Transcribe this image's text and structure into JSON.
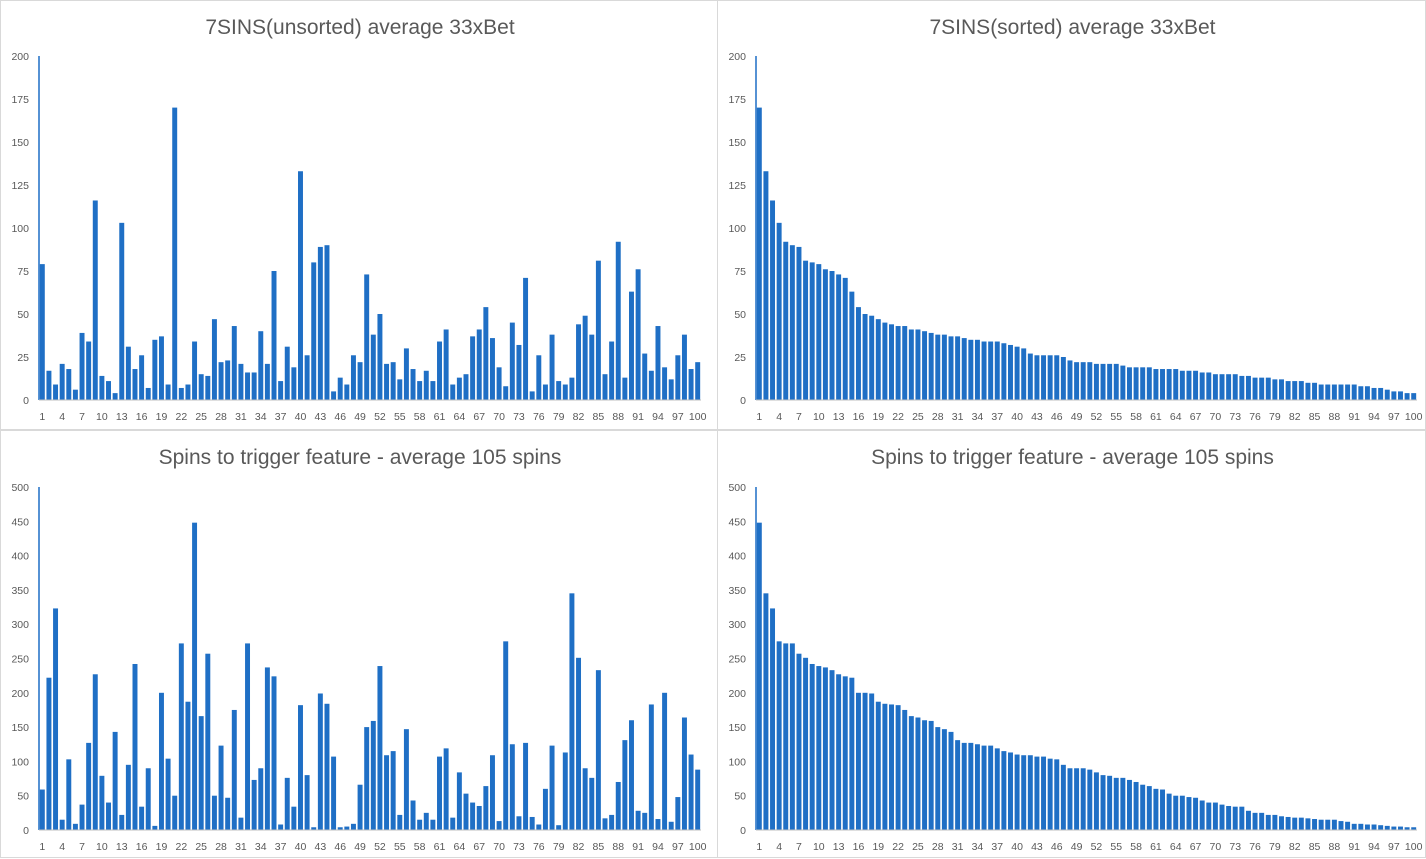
{
  "chart_data": [
    {
      "type": "bar",
      "title": "7SINS(unsorted) average 33xBet",
      "ylim": [
        0,
        200
      ],
      "y_ticks": [
        "0",
        "25",
        "50",
        "75",
        "100",
        "125",
        "150",
        "175",
        "200"
      ],
      "x_tick_labels": [
        "1",
        "4",
        "7",
        "10",
        "13",
        "16",
        "19",
        "22",
        "25",
        "28",
        "31",
        "34",
        "37",
        "40",
        "43",
        "46",
        "49",
        "52",
        "55",
        "58",
        "61",
        "64",
        "67",
        "70",
        "73",
        "76",
        "79",
        "82",
        "85",
        "88",
        "91",
        "94",
        "97",
        "100"
      ],
      "categories": [
        1,
        2,
        3,
        4,
        5,
        6,
        7,
        8,
        9,
        10,
        11,
        12,
        13,
        14,
        15,
        16,
        17,
        18,
        19,
        20,
        21,
        22,
        23,
        24,
        25,
        26,
        27,
        28,
        29,
        30,
        31,
        32,
        33,
        34,
        35,
        36,
        37,
        38,
        39,
        40,
        41,
        42,
        43,
        44,
        45,
        46,
        47,
        48,
        49,
        50,
        51,
        52,
        53,
        54,
        55,
        56,
        57,
        58,
        59,
        60,
        61,
        62,
        63,
        64,
        65,
        66,
        67,
        68,
        69,
        70,
        71,
        72,
        73,
        74,
        75,
        76,
        77,
        78,
        79,
        80,
        81,
        82,
        83,
        84,
        85,
        86,
        87,
        88,
        89,
        90,
        91,
        92,
        93,
        94,
        95,
        96,
        97,
        98,
        99,
        100
      ],
      "values": [
        79,
        17,
        9,
        21,
        18,
        6,
        39,
        34,
        116,
        14,
        11,
        4,
        103,
        31,
        18,
        26,
        7,
        35,
        37,
        9,
        170,
        7,
        9,
        34,
        15,
        14,
        47,
        22,
        23,
        43,
        21,
        16,
        16,
        40,
        21,
        75,
        11,
        31,
        19,
        133,
        26,
        80,
        89,
        90,
        5,
        13,
        9,
        26,
        22,
        73,
        38,
        50,
        21,
        22,
        12,
        30,
        18,
        11,
        17,
        11,
        34,
        41,
        9,
        13,
        15,
        37,
        41,
        54,
        36,
        19,
        8,
        45,
        32,
        71,
        5,
        26,
        9,
        38,
        11,
        9,
        13,
        44,
        49,
        38,
        81,
        15,
        34,
        92,
        13,
        63,
        76,
        27,
        17,
        43,
        19,
        12,
        26,
        38,
        18,
        22
      ],
      "grid": false,
      "legend": "none",
      "color": "#1f6fc5"
    },
    {
      "type": "bar",
      "title": "7SINS(sorted) average 33xBet",
      "ylim": [
        0,
        200
      ],
      "y_ticks": [
        "0",
        "25",
        "50",
        "75",
        "100",
        "125",
        "150",
        "175",
        "200"
      ],
      "x_tick_labels": [
        "1",
        "4",
        "7",
        "10",
        "13",
        "16",
        "19",
        "22",
        "25",
        "28",
        "31",
        "34",
        "37",
        "40",
        "43",
        "46",
        "49",
        "52",
        "55",
        "58",
        "61",
        "64",
        "67",
        "70",
        "73",
        "76",
        "79",
        "82",
        "85",
        "88",
        "91",
        "94",
        "97",
        "100"
      ],
      "categories": [
        1,
        2,
        3,
        4,
        5,
        6,
        7,
        8,
        9,
        10,
        11,
        12,
        13,
        14,
        15,
        16,
        17,
        18,
        19,
        20,
        21,
        22,
        23,
        24,
        25,
        26,
        27,
        28,
        29,
        30,
        31,
        32,
        33,
        34,
        35,
        36,
        37,
        38,
        39,
        40,
        41,
        42,
        43,
        44,
        45,
        46,
        47,
        48,
        49,
        50,
        51,
        52,
        53,
        54,
        55,
        56,
        57,
        58,
        59,
        60,
        61,
        62,
        63,
        64,
        65,
        66,
        67,
        68,
        69,
        70,
        71,
        72,
        73,
        74,
        75,
        76,
        77,
        78,
        79,
        80,
        81,
        82,
        83,
        84,
        85,
        86,
        87,
        88,
        89,
        90,
        91,
        92,
        93,
        94,
        95,
        96,
        97,
        98,
        99,
        100
      ],
      "values": [
        170,
        133,
        116,
        103,
        92,
        90,
        89,
        81,
        80,
        79,
        76,
        75,
        73,
        71,
        63,
        54,
        50,
        49,
        47,
        45,
        44,
        43,
        43,
        41,
        41,
        40,
        39,
        38,
        38,
        37,
        37,
        36,
        35,
        35,
        34,
        34,
        34,
        33,
        32,
        31,
        30,
        27,
        26,
        26,
        26,
        26,
        25,
        23,
        22,
        22,
        22,
        21,
        21,
        21,
        21,
        20,
        19,
        19,
        19,
        19,
        18,
        18,
        18,
        18,
        17,
        17,
        17,
        16,
        16,
        15,
        15,
        15,
        15,
        14,
        14,
        13,
        13,
        13,
        12,
        12,
        11,
        11,
        11,
        10,
        10,
        9,
        9,
        9,
        9,
        9,
        9,
        8,
        8,
        7,
        7,
        6,
        5,
        5,
        4,
        4
      ],
      "grid": false,
      "legend": "none",
      "color": "#1f6fc5"
    },
    {
      "type": "bar",
      "title": "Spins to trigger feature - average 105 spins",
      "ylim": [
        0,
        500
      ],
      "y_ticks": [
        "0",
        "50",
        "100",
        "150",
        "200",
        "250",
        "300",
        "350",
        "400",
        "450",
        "500"
      ],
      "x_tick_labels": [
        "1",
        "4",
        "7",
        "10",
        "13",
        "16",
        "19",
        "22",
        "25",
        "28",
        "31",
        "34",
        "37",
        "40",
        "43",
        "46",
        "49",
        "52",
        "55",
        "58",
        "61",
        "64",
        "67",
        "70",
        "73",
        "76",
        "79",
        "82",
        "85",
        "88",
        "91",
        "94",
        "97",
        "100"
      ],
      "categories": [
        1,
        2,
        3,
        4,
        5,
        6,
        7,
        8,
        9,
        10,
        11,
        12,
        13,
        14,
        15,
        16,
        17,
        18,
        19,
        20,
        21,
        22,
        23,
        24,
        25,
        26,
        27,
        28,
        29,
        30,
        31,
        32,
        33,
        34,
        35,
        36,
        37,
        38,
        39,
        40,
        41,
        42,
        43,
        44,
        45,
        46,
        47,
        48,
        49,
        50,
        51,
        52,
        53,
        54,
        55,
        56,
        57,
        58,
        59,
        60,
        61,
        62,
        63,
        64,
        65,
        66,
        67,
        68,
        69,
        70,
        71,
        72,
        73,
        74,
        75,
        76,
        77,
        78,
        79,
        80,
        81,
        82,
        83,
        84,
        85,
        86,
        87,
        88,
        89,
        90,
        91,
        92,
        93,
        94,
        95,
        96,
        97,
        98,
        99,
        100
      ],
      "values": [
        59,
        222,
        323,
        15,
        103,
        9,
        37,
        127,
        227,
        79,
        40,
        143,
        22,
        95,
        242,
        34,
        90,
        6,
        200,
        104,
        50,
        272,
        187,
        448,
        166,
        257,
        50,
        123,
        47,
        175,
        18,
        272,
        73,
        90,
        237,
        224,
        8,
        76,
        34,
        182,
        80,
        4,
        199,
        184,
        107,
        4,
        5,
        9,
        66,
        150,
        159,
        239,
        109,
        115,
        22,
        147,
        43,
        15,
        25,
        15,
        107,
        119,
        18,
        84,
        53,
        40,
        35,
        64,
        109,
        13,
        275,
        125,
        20,
        127,
        19,
        8,
        60,
        123,
        7,
        113,
        345,
        251,
        90,
        76,
        233,
        17,
        22,
        70,
        131,
        160,
        28,
        25,
        183,
        16,
        200,
        12,
        48,
        164,
        110,
        88
      ],
      "grid": false,
      "legend": "none",
      "color": "#1f6fc5"
    },
    {
      "type": "bar",
      "title": "Spins to trigger feature - average 105 spins",
      "ylim": [
        0,
        500
      ],
      "y_ticks": [
        "0",
        "50",
        "100",
        "150",
        "200",
        "250",
        "300",
        "350",
        "400",
        "450",
        "500"
      ],
      "x_tick_labels": [
        "1",
        "4",
        "7",
        "10",
        "13",
        "16",
        "19",
        "22",
        "25",
        "28",
        "31",
        "34",
        "37",
        "40",
        "43",
        "46",
        "49",
        "52",
        "55",
        "58",
        "61",
        "64",
        "67",
        "70",
        "73",
        "76",
        "79",
        "82",
        "85",
        "88",
        "91",
        "94",
        "97",
        "100"
      ],
      "categories": [
        1,
        2,
        3,
        4,
        5,
        6,
        7,
        8,
        9,
        10,
        11,
        12,
        13,
        14,
        15,
        16,
        17,
        18,
        19,
        20,
        21,
        22,
        23,
        24,
        25,
        26,
        27,
        28,
        29,
        30,
        31,
        32,
        33,
        34,
        35,
        36,
        37,
        38,
        39,
        40,
        41,
        42,
        43,
        44,
        45,
        46,
        47,
        48,
        49,
        50,
        51,
        52,
        53,
        54,
        55,
        56,
        57,
        58,
        59,
        60,
        61,
        62,
        63,
        64,
        65,
        66,
        67,
        68,
        69,
        70,
        71,
        72,
        73,
        74,
        75,
        76,
        77,
        78,
        79,
        80,
        81,
        82,
        83,
        84,
        85,
        86,
        87,
        88,
        89,
        90,
        91,
        92,
        93,
        94,
        95,
        96,
        97,
        98,
        99,
        100
      ],
      "values": [
        448,
        345,
        323,
        275,
        272,
        272,
        257,
        251,
        242,
        239,
        237,
        233,
        227,
        224,
        222,
        200,
        200,
        199,
        187,
        184,
        183,
        182,
        175,
        166,
        164,
        160,
        159,
        150,
        147,
        143,
        131,
        127,
        127,
        125,
        123,
        123,
        119,
        115,
        113,
        110,
        109,
        109,
        107,
        107,
        104,
        103,
        95,
        90,
        90,
        90,
        88,
        84,
        80,
        79,
        76,
        76,
        73,
        70,
        66,
        64,
        60,
        59,
        53,
        50,
        50,
        48,
        47,
        43,
        40,
        40,
        37,
        35,
        34,
        34,
        28,
        25,
        25,
        22,
        22,
        20,
        19,
        18,
        18,
        17,
        16,
        15,
        15,
        15,
        13,
        12,
        9,
        9,
        8,
        8,
        7,
        6,
        5,
        5,
        4,
        4
      ],
      "grid": false,
      "legend": "none",
      "color": "#1f6fc5"
    }
  ]
}
